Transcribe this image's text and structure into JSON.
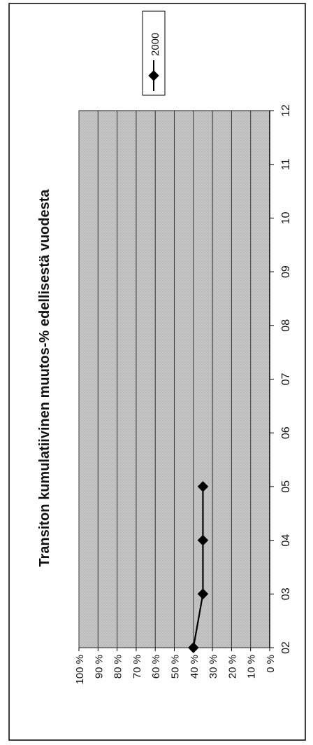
{
  "chart_data": {
    "type": "line",
    "orientation": "rotated-90",
    "title": "Transiton kumulatiivinen muutos-% edellisestä vuodesta",
    "xlabel": "",
    "ylabel": "",
    "categories": [
      "02",
      "03",
      "04",
      "05",
      "06",
      "07",
      "08",
      "09",
      "10",
      "11",
      "12"
    ],
    "ylim": [
      0,
      100
    ],
    "y_ticks": [
      "100 %",
      "90 %",
      "80 %",
      "70 %",
      "60 %",
      "50 %",
      "40 %",
      "30 %",
      "20 %",
      "10 %",
      "0 %"
    ],
    "grid": true,
    "legend_position": "top-right",
    "series": [
      {
        "name": "2000",
        "values": [
          40,
          35,
          35,
          35,
          null,
          null,
          null,
          null,
          null,
          null,
          null
        ]
      }
    ]
  },
  "colors": {
    "plot_background": "#c4c4c4",
    "gridline": "#333333",
    "series_line": "#000000",
    "frame": "#000000"
  }
}
